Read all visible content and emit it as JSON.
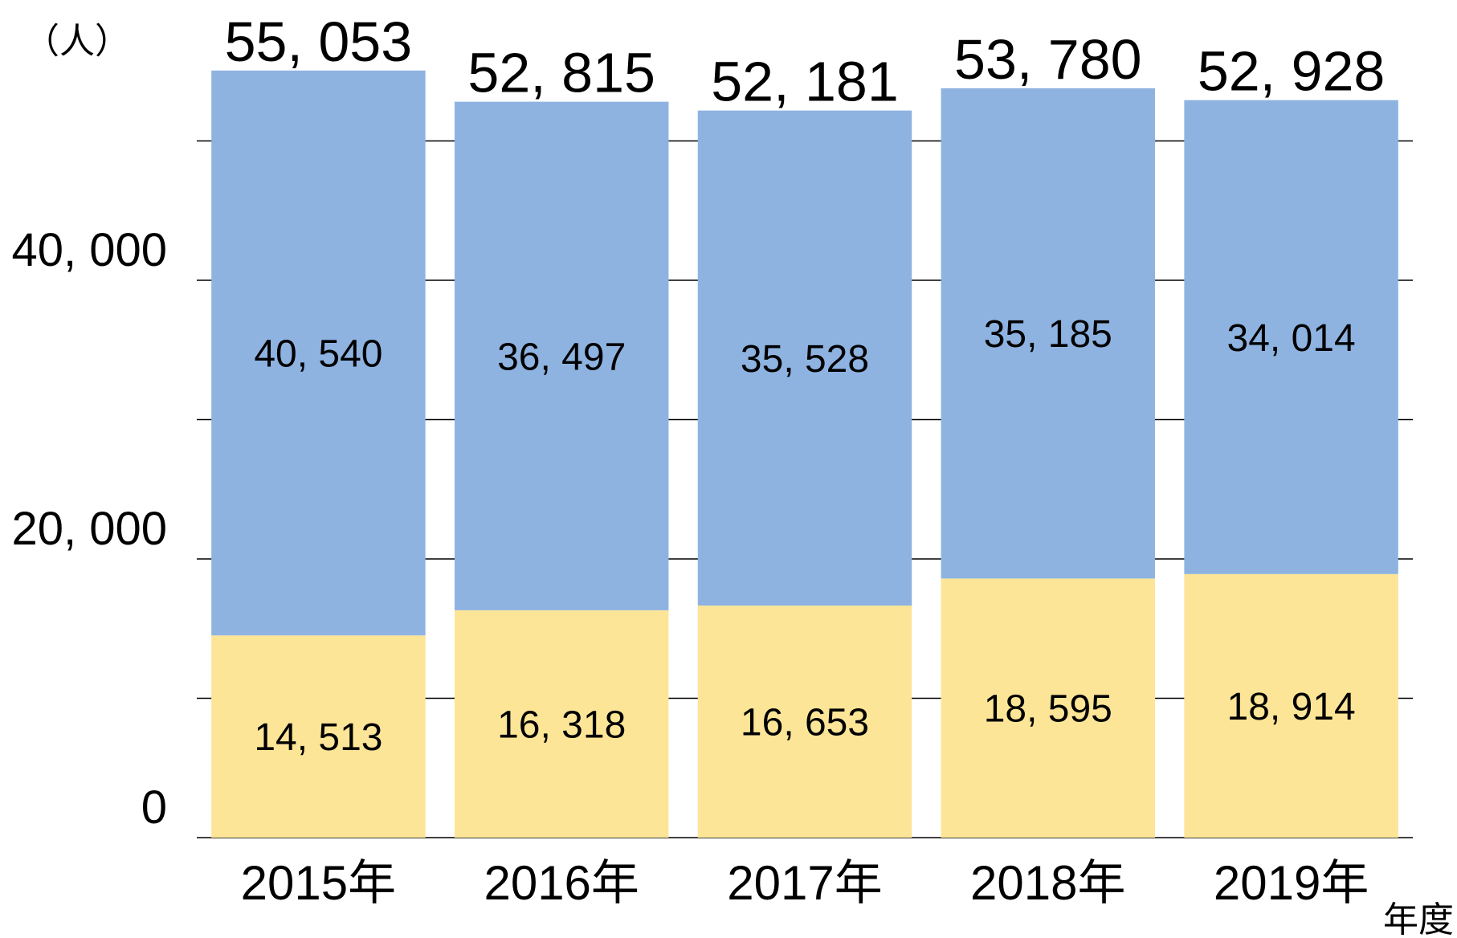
{
  "chart_data": {
    "type": "stacked_bar",
    "y_axis_label": "（人）",
    "x_axis_label": "年度",
    "categories": [
      "2015年",
      "2016年",
      "2017年",
      "2018年",
      "2019年"
    ],
    "series": [
      {
        "color": "#fde597",
        "values": [
          14513,
          16318,
          16653,
          18595,
          18914
        ],
        "value_labels": [
          "14, 513",
          "16, 318",
          "16, 653",
          "18, 595",
          "18, 914"
        ]
      },
      {
        "color": "#8eb3e1",
        "values": [
          40540,
          36497,
          35528,
          35185,
          34014
        ],
        "value_labels": [
          "40, 540",
          "36, 497",
          "35, 528",
          "35, 185",
          "34, 014"
        ]
      }
    ],
    "totals": [
      55053,
      52815,
      52181,
      53780,
      52928
    ],
    "total_labels": [
      "55, 053",
      "52, 815",
      "52, 181",
      "53, 780",
      "52, 928"
    ],
    "ylim": [
      0,
      60000
    ],
    "yticks": [
      0,
      {
        "value": 20000,
        "label": "20, 000"
      },
      {
        "value": 40000,
        "label": "40, 000"
      }
    ],
    "minor_yticks": [
      10000,
      30000,
      50000
    ],
    "grid": true
  }
}
